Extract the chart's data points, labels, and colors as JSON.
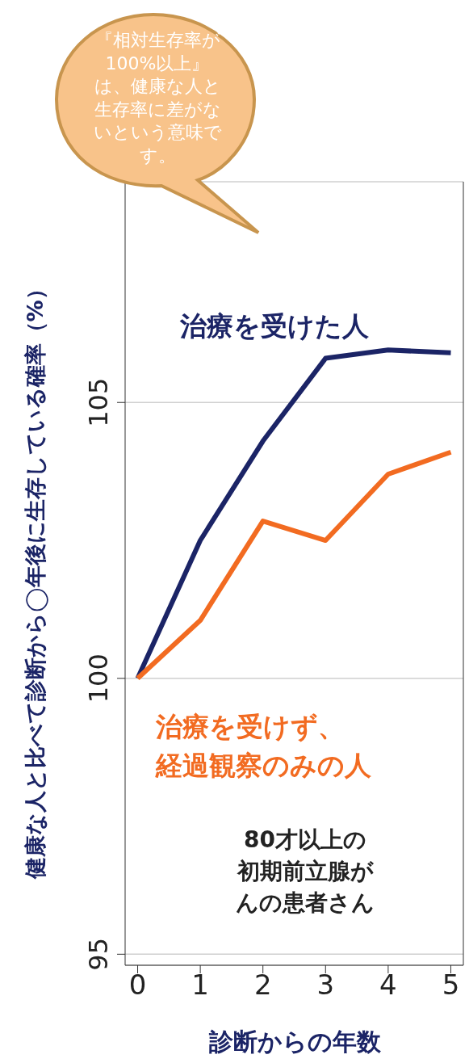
{
  "chart_data": {
    "type": "line",
    "ylabel": "健康な人と比べて診断から◯年後に生存している確率（%）",
    "xlabel": "診断からの年数",
    "x": [
      0,
      1,
      2,
      3,
      4,
      5
    ],
    "series": [
      {
        "name": "治療を受けた人",
        "color": "#1b2466",
        "values": [
          100,
          102.5,
          104.3,
          105.8,
          105.95,
          105.9
        ]
      },
      {
        "name": "治療を受けず、経過観察のみの人",
        "color": "#f26b21",
        "values": [
          100,
          101.05,
          102.85,
          102.5,
          103.7,
          104.1
        ]
      }
    ],
    "xlim": [
      -0.2,
      5.2
    ],
    "xticks": [
      0,
      1,
      2,
      3,
      4,
      5
    ],
    "ylim": [
      94.8,
      109
    ],
    "yticks": [
      95,
      100,
      105
    ],
    "grid": "y",
    "marker": "none",
    "line_style": "solid",
    "annotations": [
      "『相対生存率が100%以上』は、健康な人と生存率に差がないという意味です。",
      "80才以上の初期前立腺がんの患者さん"
    ]
  }
}
